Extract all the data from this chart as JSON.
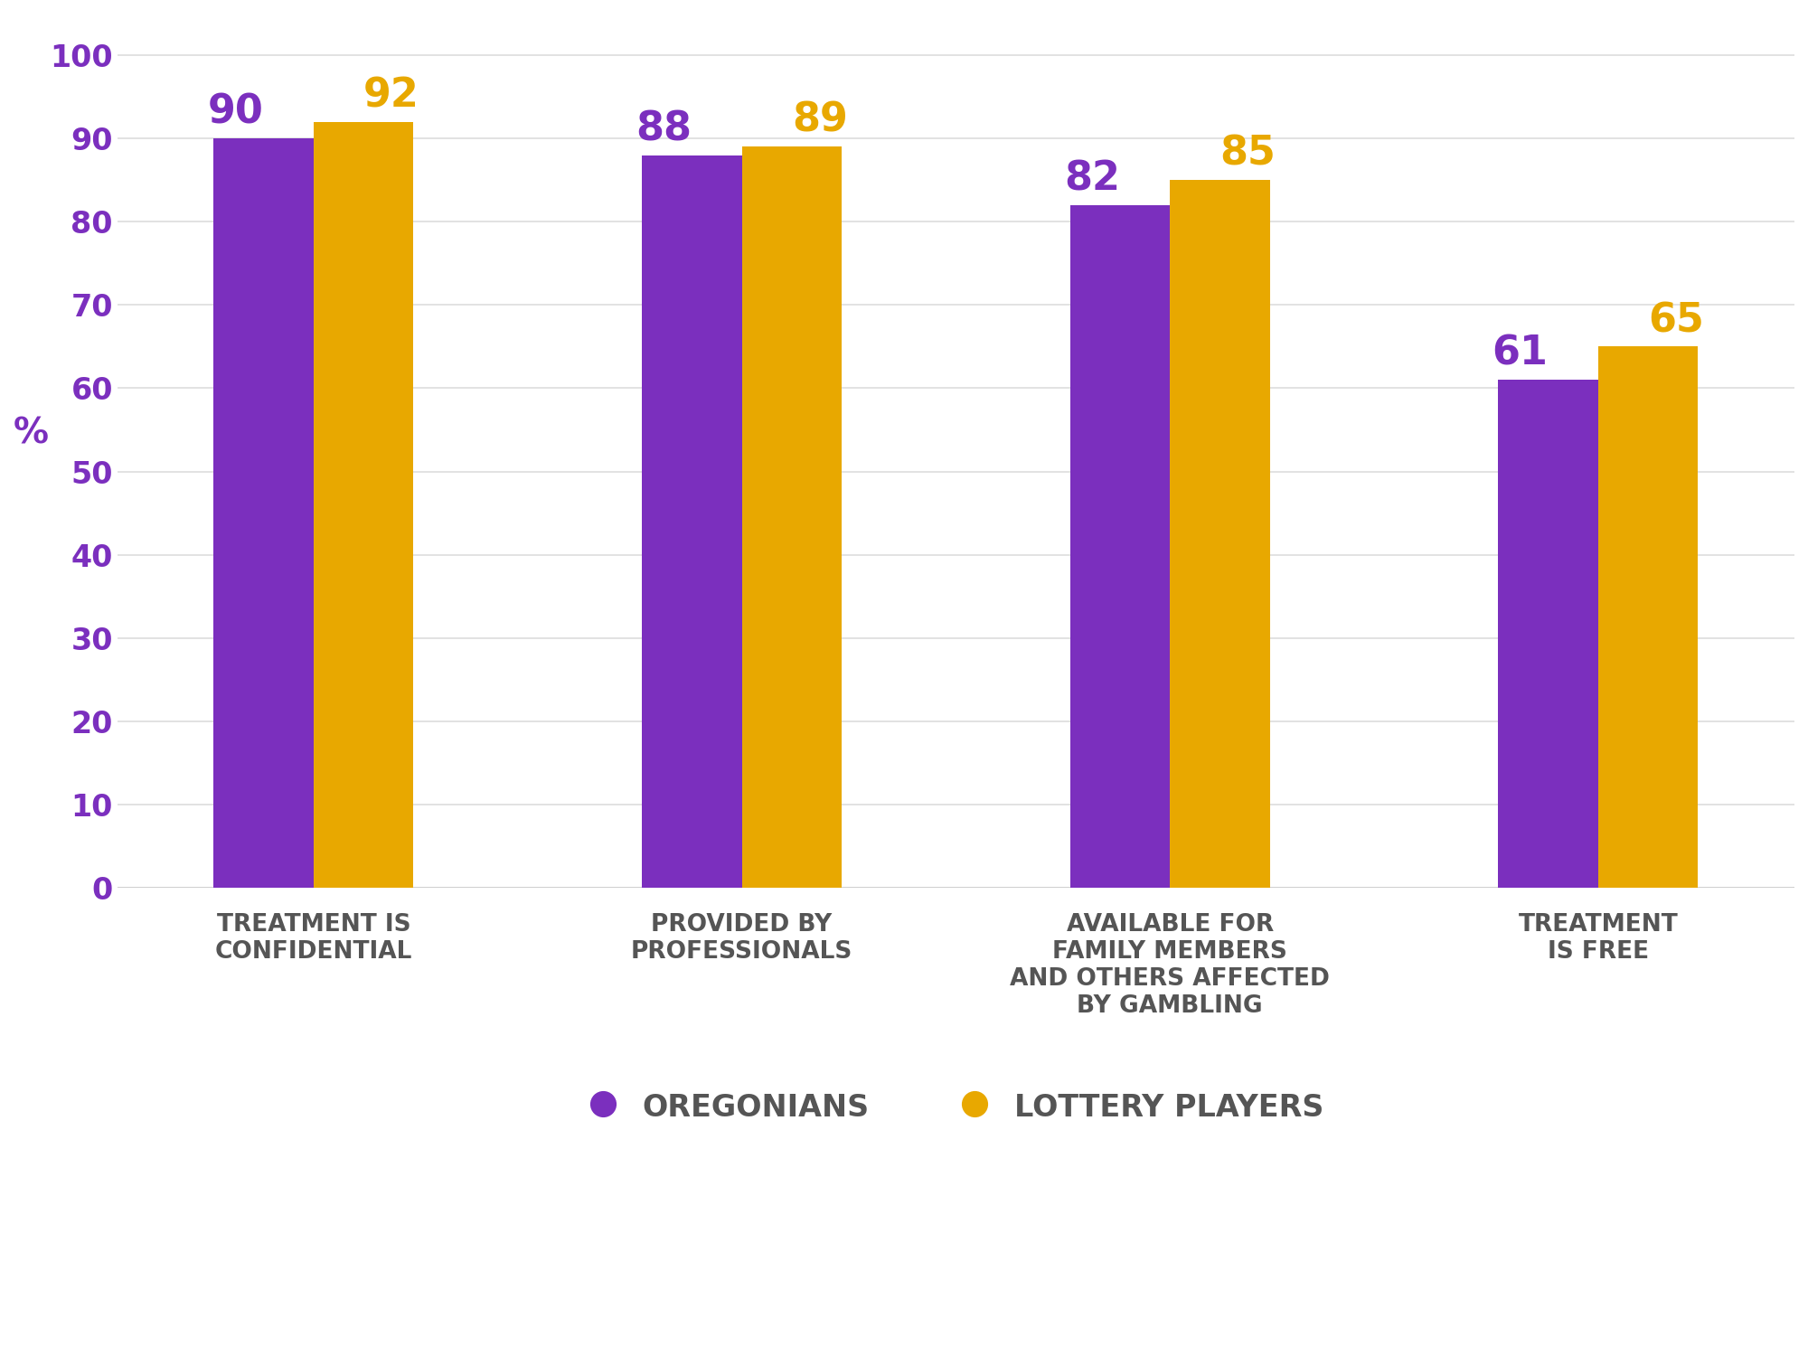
{
  "categories": [
    "TREATMENT IS\nCONFIDENTIAL",
    "PROVIDED BY\nPROFESSIONALS",
    "AVAILABLE FOR\nFAMILY MEMBERS\nAND OTHERS AFFECTED\nBY GAMBLING",
    "TREATMENT\nIS FREE"
  ],
  "oregonians": [
    90,
    88,
    82,
    61
  ],
  "lottery_players": [
    92,
    89,
    85,
    65
  ],
  "oregonians_color": "#7B2FBE",
  "lottery_players_color": "#E8A800",
  "background_color": "#FFFFFF",
  "ylabel": "%",
  "ylim": [
    0,
    105
  ],
  "yticks": [
    0,
    10,
    20,
    30,
    40,
    50,
    60,
    70,
    80,
    90,
    100
  ],
  "bar_width": 0.28,
  "legend_oregonians": "OREGONIANS",
  "legend_lottery": "LOTTERY PLAYERS",
  "value_fontsize": 32,
  "label_fontsize": 19,
  "tick_fontsize": 24,
  "legend_fontsize": 24,
  "xlabel_color": "#555555",
  "legend_text_color": "#555555"
}
